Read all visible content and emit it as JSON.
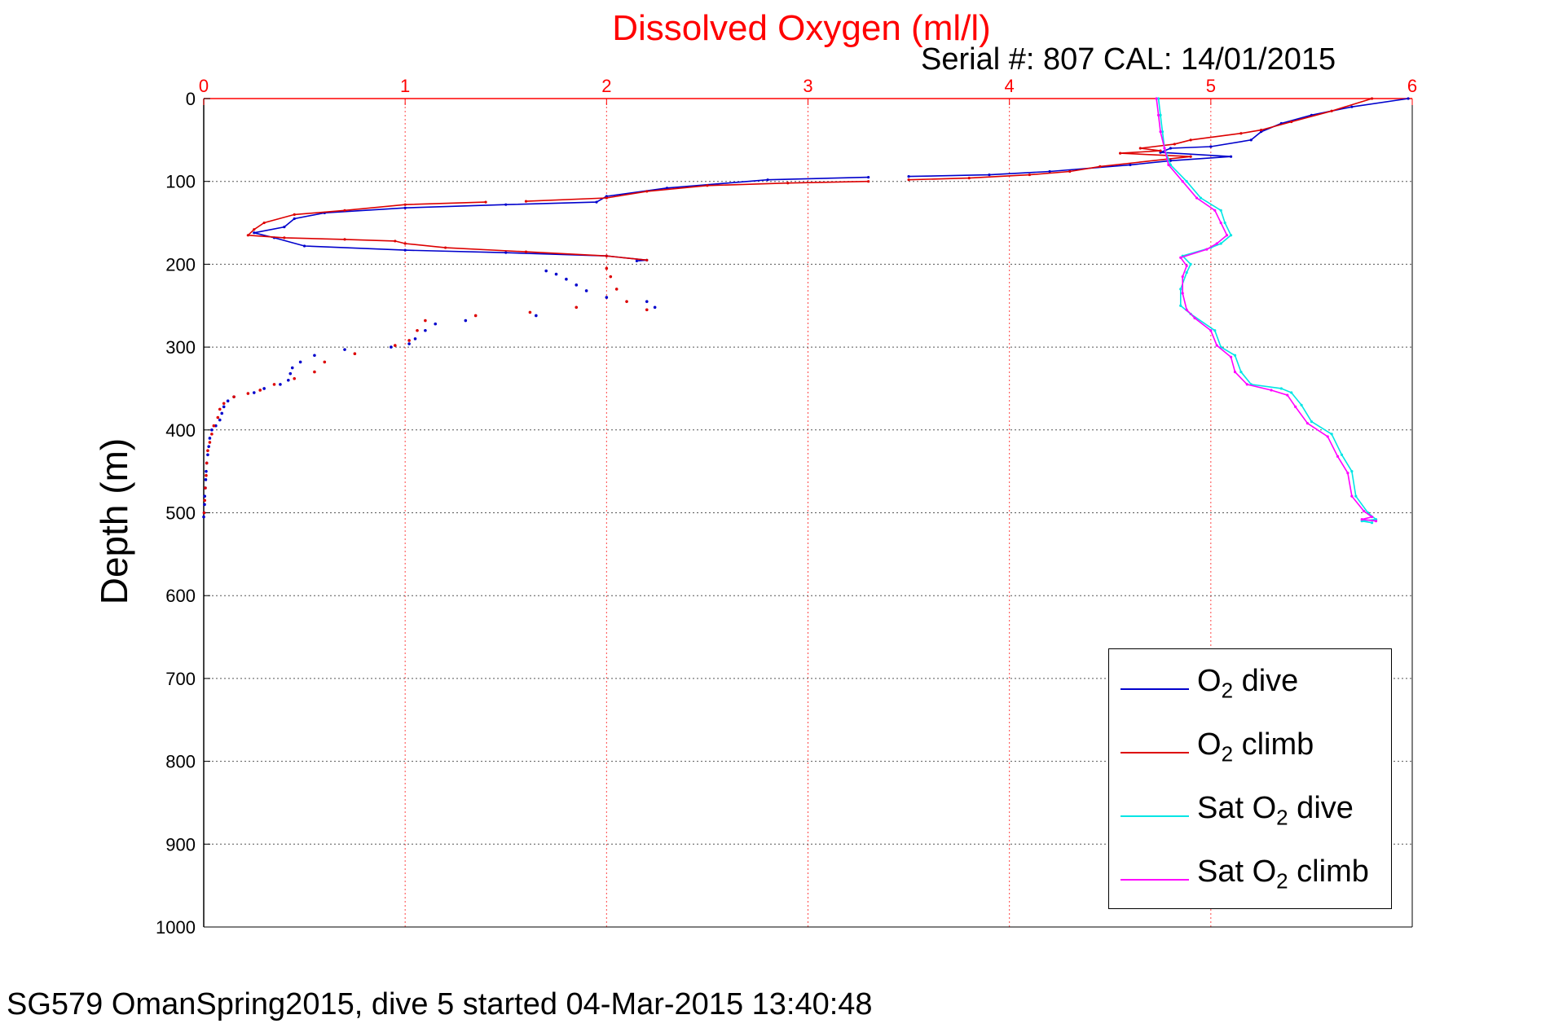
{
  "title": "Dissolved Oxygen (ml/l)",
  "serial_text": "Serial #: 807  CAL: 14/01/2015",
  "footer_text": "SG579 OmanSpring2015, dive 5 started 04-Mar-2015 13:40:48",
  "ylabel": "Depth (m)",
  "legend": [
    {
      "pre": "O",
      "sub": "2",
      "post": " dive",
      "color": "#0000cc"
    },
    {
      "pre": "O",
      "sub": "2",
      "post": " climb",
      "color": "#dd0000"
    },
    {
      "pre": "Sat O",
      "sub": "2",
      "post": " dive",
      "color": "#00e5e5"
    },
    {
      "pre": "Sat O",
      "sub": "2",
      "post": " climb",
      "color": "#ff00ff"
    }
  ],
  "chart_data": {
    "type": "line",
    "xlim": [
      0,
      6
    ],
    "ylim": [
      0,
      1000
    ],
    "y_reversed": true,
    "x_axis_position": "top",
    "x_ticks": [
      0,
      1,
      2,
      3,
      4,
      5,
      6
    ],
    "y_ticks": [
      0,
      100,
      200,
      300,
      400,
      500,
      600,
      700,
      800,
      900,
      1000
    ],
    "grid": true,
    "legend_position": "bottom-right",
    "colors": {
      "x_axis": "#ff0000",
      "y_axis": "#000000"
    },
    "series": [
      {
        "name": "O2 dive",
        "color": "#0000cc",
        "segments": [
          {
            "style": "line",
            "points": [
              [
                5.98,
                0
              ],
              [
                5.7,
                10
              ],
              [
                5.5,
                20
              ],
              [
                5.35,
                30
              ],
              [
                5.25,
                40
              ],
              [
                5.2,
                50
              ],
              [
                5.0,
                58
              ],
              [
                4.8,
                60
              ],
              [
                4.75,
                65
              ],
              [
                5.1,
                70
              ],
              [
                4.8,
                75
              ],
              [
                4.6,
                80
              ],
              [
                4.2,
                88
              ],
              [
                3.9,
                92
              ],
              [
                3.5,
                94
              ]
            ]
          },
          {
            "style": "line",
            "points": [
              [
                3.3,
                95
              ],
              [
                2.8,
                98
              ],
              [
                2.3,
                108
              ],
              [
                2.0,
                118
              ],
              [
                1.95,
                125
              ],
              [
                1.5,
                128
              ],
              [
                1.0,
                132
              ],
              [
                0.6,
                138
              ],
              [
                0.45,
                145
              ],
              [
                0.4,
                155
              ],
              [
                0.25,
                162
              ],
              [
                0.35,
                168
              ],
              [
                0.5,
                178
              ],
              [
                1.0,
                183
              ],
              [
                1.5,
                186
              ],
              [
                2.0,
                190
              ],
              [
                2.2,
                195
              ],
              [
                2.15,
                196
              ]
            ]
          },
          {
            "style": "points",
            "points": [
              [
                2.2,
                245
              ],
              [
                2.24,
                252
              ],
              [
                2.0,
                240
              ],
              [
                1.9,
                232
              ],
              [
                1.85,
                225
              ],
              [
                1.8,
                218
              ],
              [
                1.75,
                212
              ],
              [
                1.7,
                208
              ],
              [
                1.65,
                262
              ],
              [
                1.3,
                268
              ],
              [
                1.15,
                272
              ],
              [
                1.1,
                280
              ],
              [
                1.05,
                290
              ],
              [
                1.02,
                296
              ],
              [
                0.93,
                300
              ],
              [
                0.7,
                303
              ],
              [
                0.55,
                310
              ],
              [
                0.48,
                318
              ],
              [
                0.44,
                325
              ],
              [
                0.43,
                332
              ],
              [
                0.42,
                340
              ],
              [
                0.38,
                345
              ],
              [
                0.3,
                350
              ],
              [
                0.25,
                355
              ],
              [
                0.15,
                360
              ],
              [
                0.12,
                365
              ],
              [
                0.1,
                372
              ],
              [
                0.09,
                380
              ],
              [
                0.08,
                388
              ],
              [
                0.06,
                395
              ],
              [
                0.04,
                400
              ],
              [
                0.03,
                410
              ],
              [
                0.025,
                420
              ],
              [
                0.02,
                430
              ],
              [
                0.015,
                440
              ],
              [
                0.012,
                450
              ],
              [
                0.01,
                460
              ],
              [
                0.008,
                470
              ],
              [
                0.005,
                480
              ],
              [
                0.004,
                490
              ],
              [
                0.002,
                500
              ],
              [
                0.0,
                505
              ]
            ]
          }
        ]
      },
      {
        "name": "O2 climb",
        "color": "#dd0000",
        "segments": [
          {
            "style": "line",
            "points": [
              [
                5.8,
                0
              ],
              [
                5.6,
                15
              ],
              [
                5.4,
                28
              ],
              [
                5.25,
                38
              ],
              [
                5.15,
                42
              ],
              [
                4.9,
                50
              ],
              [
                4.82,
                55
              ],
              [
                4.65,
                60
              ],
              [
                4.75,
                63
              ],
              [
                4.55,
                66
              ],
              [
                4.9,
                70
              ],
              [
                4.45,
                82
              ],
              [
                4.3,
                88
              ],
              [
                4.1,
                92
              ],
              [
                3.8,
                96
              ],
              [
                3.5,
                98
              ]
            ]
          },
          {
            "style": "line",
            "points": [
              [
                3.3,
                100
              ],
              [
                2.9,
                102
              ],
              [
                2.5,
                105
              ],
              [
                2.2,
                112
              ],
              [
                2.0,
                120
              ],
              [
                1.6,
                124
              ]
            ]
          },
          {
            "style": "line",
            "points": [
              [
                1.4,
                125
              ],
              [
                1.0,
                128
              ],
              [
                0.7,
                135
              ],
              [
                0.45,
                140
              ],
              [
                0.3,
                150
              ],
              [
                0.25,
                158
              ],
              [
                0.22,
                165
              ],
              [
                0.4,
                168
              ],
              [
                0.7,
                170
              ],
              [
                0.95,
                172
              ],
              [
                1.0,
                175
              ],
              [
                1.2,
                180
              ],
              [
                1.6,
                185
              ],
              [
                2.0,
                190
              ],
              [
                2.2,
                195
              ]
            ]
          },
          {
            "style": "points",
            "points": [
              [
                2.2,
                255
              ],
              [
                2.1,
                245
              ],
              [
                2.05,
                230
              ],
              [
                2.02,
                215
              ],
              [
                2.0,
                205
              ],
              [
                1.85,
                252
              ],
              [
                1.62,
                258
              ],
              [
                1.35,
                262
              ],
              [
                1.1,
                268
              ],
              [
                1.06,
                280
              ],
              [
                1.02,
                292
              ],
              [
                0.95,
                298
              ],
              [
                0.75,
                308
              ],
              [
                0.6,
                318
              ],
              [
                0.55,
                330
              ],
              [
                0.45,
                338
              ],
              [
                0.35,
                345
              ],
              [
                0.28,
                352
              ],
              [
                0.22,
                356
              ],
              [
                0.15,
                360
              ],
              [
                0.1,
                368
              ],
              [
                0.08,
                375
              ],
              [
                0.07,
                385
              ],
              [
                0.05,
                395
              ],
              [
                0.04,
                405
              ],
              [
                0.03,
                415
              ],
              [
                0.02,
                425
              ],
              [
                0.015,
                440
              ],
              [
                0.012,
                455
              ],
              [
                0.008,
                470
              ],
              [
                0.005,
                485
              ],
              [
                0.002,
                500
              ]
            ]
          }
        ]
      },
      {
        "name": "Sat O2 dive",
        "color": "#00e5e5",
        "segments": [
          {
            "style": "line",
            "points": [
              [
                4.74,
                0
              ],
              [
                4.75,
                20
              ],
              [
                4.76,
                40
              ],
              [
                4.77,
                60
              ],
              [
                4.8,
                80
              ],
              [
                4.88,
                100
              ],
              [
                4.95,
                120
              ],
              [
                5.05,
                135
              ],
              [
                5.07,
                150
              ],
              [
                5.1,
                165
              ],
              [
                5.05,
                175
              ],
              [
                5.0,
                180
              ],
              [
                4.86,
                190
              ],
              [
                4.9,
                200
              ],
              [
                4.88,
                210
              ],
              [
                4.85,
                230
              ],
              [
                4.85,
                250
              ],
              [
                4.9,
                260
              ],
              [
                5.02,
                280
              ],
              [
                5.05,
                300
              ],
              [
                5.12,
                310
              ],
              [
                5.15,
                330
              ],
              [
                5.2,
                345
              ],
              [
                5.35,
                350
              ],
              [
                5.4,
                355
              ],
              [
                5.45,
                370
              ],
              [
                5.5,
                390
              ],
              [
                5.6,
                405
              ],
              [
                5.65,
                430
              ],
              [
                5.7,
                450
              ],
              [
                5.72,
                480
              ],
              [
                5.78,
                500
              ],
              [
                5.82,
                508
              ],
              [
                5.75,
                510
              ],
              [
                5.8,
                512
              ]
            ]
          }
        ]
      },
      {
        "name": "Sat O2 climb",
        "color": "#ff00ff",
        "segments": [
          {
            "style": "line",
            "points": [
              [
                4.73,
                0
              ],
              [
                4.74,
                20
              ],
              [
                4.75,
                40
              ],
              [
                4.77,
                60
              ],
              [
                4.79,
                80
              ],
              [
                4.86,
                100
              ],
              [
                4.93,
                120
              ],
              [
                5.02,
                135
              ],
              [
                5.05,
                150
              ],
              [
                5.08,
                165
              ],
              [
                5.03,
                175
              ],
              [
                4.98,
                182
              ],
              [
                4.85,
                192
              ],
              [
                4.88,
                202
              ],
              [
                4.86,
                215
              ],
              [
                4.86,
                235
              ],
              [
                4.88,
                255
              ],
              [
                4.92,
                265
              ],
              [
                5.0,
                280
              ],
              [
                5.03,
                298
              ],
              [
                5.1,
                312
              ],
              [
                5.12,
                330
              ],
              [
                5.18,
                345
              ],
              [
                5.3,
                352
              ],
              [
                5.38,
                358
              ],
              [
                5.42,
                372
              ],
              [
                5.48,
                392
              ],
              [
                5.58,
                408
              ],
              [
                5.63,
                432
              ],
              [
                5.68,
                452
              ],
              [
                5.7,
                480
              ],
              [
                5.76,
                498
              ],
              [
                5.8,
                505
              ],
              [
                5.75,
                508
              ],
              [
                5.82,
                510
              ]
            ]
          }
        ]
      }
    ]
  }
}
